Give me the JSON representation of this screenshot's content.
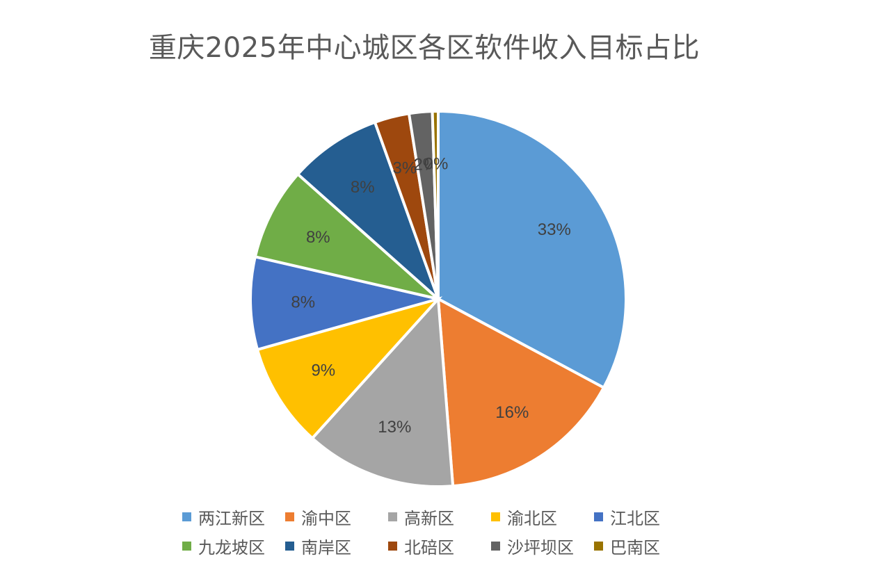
{
  "chart_data": {
    "type": "pie",
    "title": "重庆2025年中心城区各区软件收入目标占比",
    "slices": [
      {
        "name": "两江新区",
        "value": 33,
        "label": "33%",
        "color": "#5B9BD5"
      },
      {
        "name": "渝中区",
        "value": 16,
        "label": "16%",
        "color": "#ED7D31"
      },
      {
        "name": "高新区",
        "value": 13,
        "label": "13%",
        "color": "#A5A5A5"
      },
      {
        "name": "渝北区",
        "value": 9,
        "label": "9%",
        "color": "#FFC000"
      },
      {
        "name": "江北区",
        "value": 8,
        "label": "8%",
        "color": "#4472C4"
      },
      {
        "name": "九龙坡区",
        "value": 8,
        "label": "8%",
        "color": "#70AD47"
      },
      {
        "name": "南岸区",
        "value": 8,
        "label": "8%",
        "color": "#255E91"
      },
      {
        "name": "北碚区",
        "value": 3,
        "label": "3%",
        "color": "#9E480E"
      },
      {
        "name": "沙坪坝区",
        "value": 2,
        "label": "2%",
        "color": "#636363"
      },
      {
        "name": "巴南区",
        "value": 0.5,
        "label": "0%",
        "color": "#997300"
      }
    ],
    "legend_position": "bottom"
  }
}
